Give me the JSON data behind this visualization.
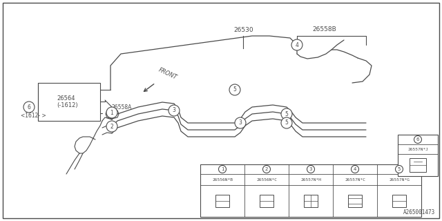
{
  "bg_color": "#ffffff",
  "line_color": "#4a4a4a",
  "fig_w": 6.4,
  "fig_h": 3.2,
  "dpi": 100,
  "title_bottom": "A265001473",
  "part_table": [
    {
      "num": "1",
      "code": "26556N*B"
    },
    {
      "num": "2",
      "code": "26556N*C"
    },
    {
      "num": "3",
      "code": "26557N*H"
    },
    {
      "num": "4",
      "code": "26557N*C"
    },
    {
      "num": "5",
      "code": "26557N*G"
    },
    {
      "num": "6",
      "code": "26557N*J"
    }
  ]
}
